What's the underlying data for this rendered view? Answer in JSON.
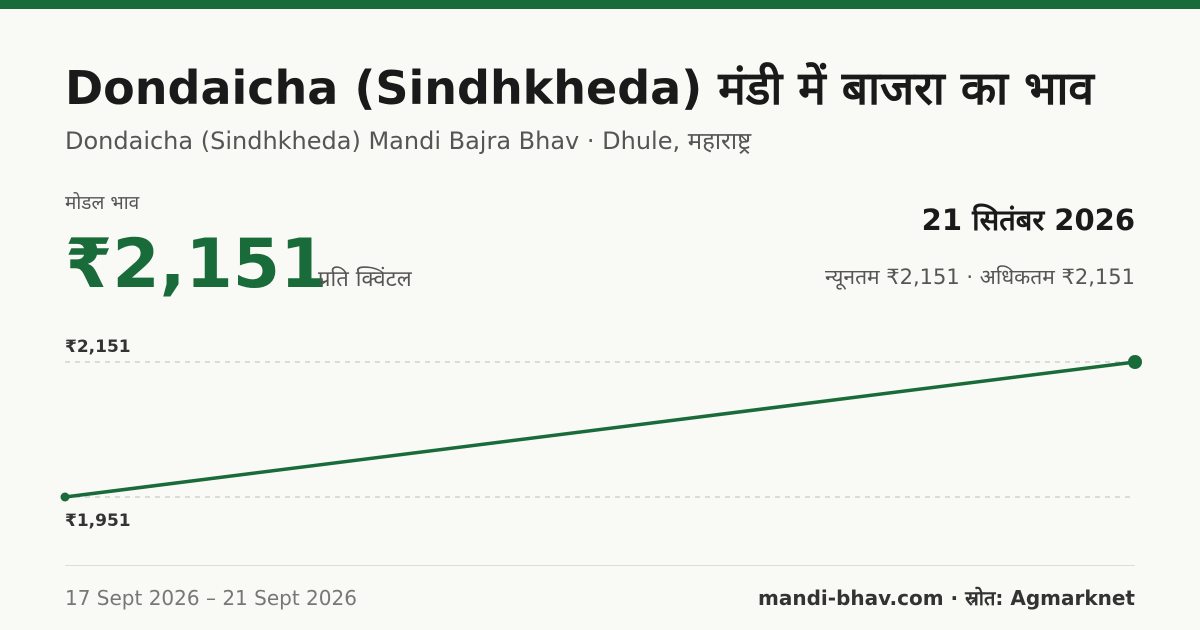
{
  "header": {
    "title": "Dondaicha (Sindhkheda) मंडी में बाजरा का भाव",
    "subtitle": "Dondaicha (Sindhkheda) Mandi Bajra Bhav · Dhule, महाराष्ट्र"
  },
  "summary": {
    "price_label": "मोडल भाव",
    "price_value": "₹2,151",
    "price_unit": "प्रति क्विंटल",
    "date": "21 सितंबर 2026",
    "range": "न्यूनतम ₹2,151 · अधिकतम ₹2,151"
  },
  "chart_data": {
    "type": "line",
    "x": [
      "17 Sept 2026",
      "21 Sept 2026"
    ],
    "series": [
      {
        "values": [
          1951,
          2151
        ]
      }
    ],
    "ylim": [
      1951,
      2151
    ],
    "tick_labels": [
      "₹2,151",
      "₹1,951"
    ],
    "grid": true,
    "accent_color": "#1a6b3a"
  },
  "footer": {
    "date_range": "17 Sept 2026 – 21 Sept 2026",
    "source": "mandi-bhav.com · स्रोत: Agmarknet"
  }
}
